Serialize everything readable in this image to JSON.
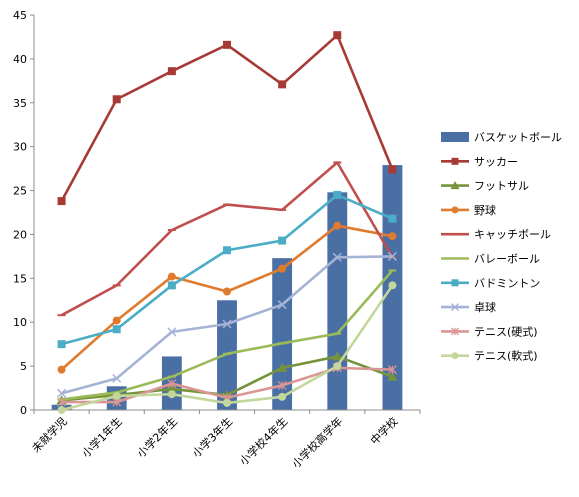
{
  "chart_data": {
    "type": "bar",
    "categories": [
      "未就学児",
      "小学1年生",
      "小学2年生",
      "小学3年生",
      "小学校4年生",
      "小学校高学年",
      "中学校"
    ],
    "ylim": [
      0,
      45
    ],
    "yticks": [
      0,
      5,
      10,
      15,
      20,
      25,
      30,
      35,
      40,
      45
    ],
    "grid": false,
    "legend_position": "right",
    "series": [
      {
        "name": "バスケットボール",
        "type": "bar",
        "color": "#4a6fa5",
        "marker": "none",
        "values": [
          0.6,
          2.7,
          6.1,
          12.5,
          17.3,
          24.8,
          27.9
        ]
      },
      {
        "name": "サッカー",
        "type": "line",
        "color": "#a83a36",
        "marker": "square",
        "values": [
          23.8,
          35.4,
          38.6,
          41.6,
          37.1,
          42.7,
          27.4
        ]
      },
      {
        "name": "フットサル",
        "type": "line",
        "color": "#76933c",
        "marker": "triangle",
        "values": [
          1.1,
          1.7,
          2.4,
          1.7,
          4.8,
          6.1,
          3.8
        ]
      },
      {
        "name": "野球",
        "type": "line",
        "color": "#e07b2e",
        "marker": "circle",
        "values": [
          4.6,
          10.2,
          15.2,
          13.5,
          16.1,
          21.0,
          19.8
        ]
      },
      {
        "name": "キャッチボール",
        "type": "line",
        "color": "#c0504d",
        "marker": "dash",
        "values": [
          10.8,
          14.2,
          20.5,
          23.4,
          22.8,
          28.2,
          17.4
        ]
      },
      {
        "name": "バレーボール",
        "type": "line",
        "color": "#9bbb59",
        "marker": "dash",
        "values": [
          1.2,
          2.0,
          3.8,
          6.4,
          7.6,
          8.7,
          15.9
        ]
      },
      {
        "name": "バドミントン",
        "type": "line",
        "color": "#4bacc6",
        "marker": "square",
        "values": [
          7.5,
          9.2,
          14.2,
          18.2,
          19.3,
          24.5,
          21.8
        ]
      },
      {
        "name": "卓球",
        "type": "line",
        "color": "#a5b4d6",
        "marker": "x",
        "values": [
          1.9,
          3.6,
          8.9,
          9.8,
          12.0,
          17.4,
          17.5
        ]
      },
      {
        "name": "テニス(硬式)",
        "type": "line",
        "color": "#d99694",
        "marker": "asterisk",
        "values": [
          0.9,
          0.9,
          3.0,
          1.4,
          2.8,
          4.8,
          4.6
        ]
      },
      {
        "name": "テニス(軟式)",
        "type": "line",
        "color": "#c3d69b",
        "marker": "circle",
        "values": [
          0.0,
          1.6,
          1.8,
          0.8,
          1.5,
          5.0,
          14.2
        ]
      }
    ]
  }
}
